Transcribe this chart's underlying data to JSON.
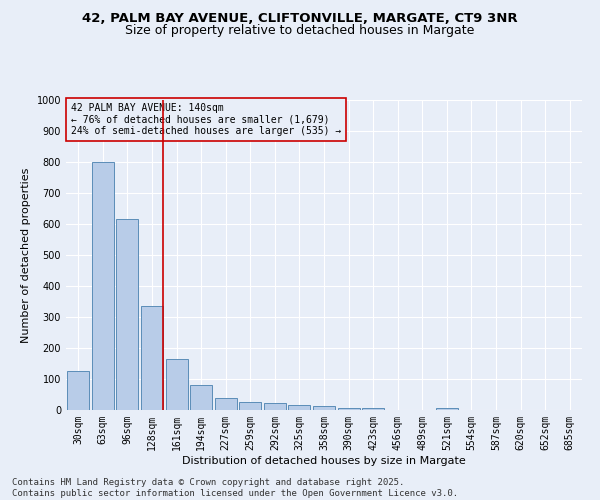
{
  "title": "42, PALM BAY AVENUE, CLIFTONVILLE, MARGATE, CT9 3NR",
  "subtitle": "Size of property relative to detached houses in Margate",
  "xlabel": "Distribution of detached houses by size in Margate",
  "ylabel": "Number of detached properties",
  "bar_labels": [
    "30sqm",
    "63sqm",
    "96sqm",
    "128sqm",
    "161sqm",
    "194sqm",
    "227sqm",
    "259sqm",
    "292sqm",
    "325sqm",
    "358sqm",
    "390sqm",
    "423sqm",
    "456sqm",
    "489sqm",
    "521sqm",
    "554sqm",
    "587sqm",
    "620sqm",
    "652sqm",
    "685sqm"
  ],
  "bar_values": [
    125,
    800,
    615,
    335,
    165,
    80,
    40,
    25,
    22,
    15,
    12,
    5,
    5,
    0,
    0,
    5,
    0,
    0,
    0,
    0,
    0
  ],
  "bar_color": "#B8CCE8",
  "bar_edge_color": "#5B8DB8",
  "vline_pos": 3.45,
  "vline_color": "#CC0000",
  "annotation_box_text": "42 PALM BAY AVENUE: 140sqm\n← 76% of detached houses are smaller (1,679)\n24% of semi-detached houses are larger (535) →",
  "ylim": [
    0,
    1000
  ],
  "yticks": [
    0,
    100,
    200,
    300,
    400,
    500,
    600,
    700,
    800,
    900,
    1000
  ],
  "background_color": "#E8EEF8",
  "grid_color": "#FFFFFF",
  "footer_line1": "Contains HM Land Registry data © Crown copyright and database right 2025.",
  "footer_line2": "Contains public sector information licensed under the Open Government Licence v3.0.",
  "title_fontsize": 9.5,
  "subtitle_fontsize": 9,
  "tick_fontsize": 7,
  "ylabel_fontsize": 8,
  "xlabel_fontsize": 8,
  "annotation_fontsize": 7,
  "footer_fontsize": 6.5
}
